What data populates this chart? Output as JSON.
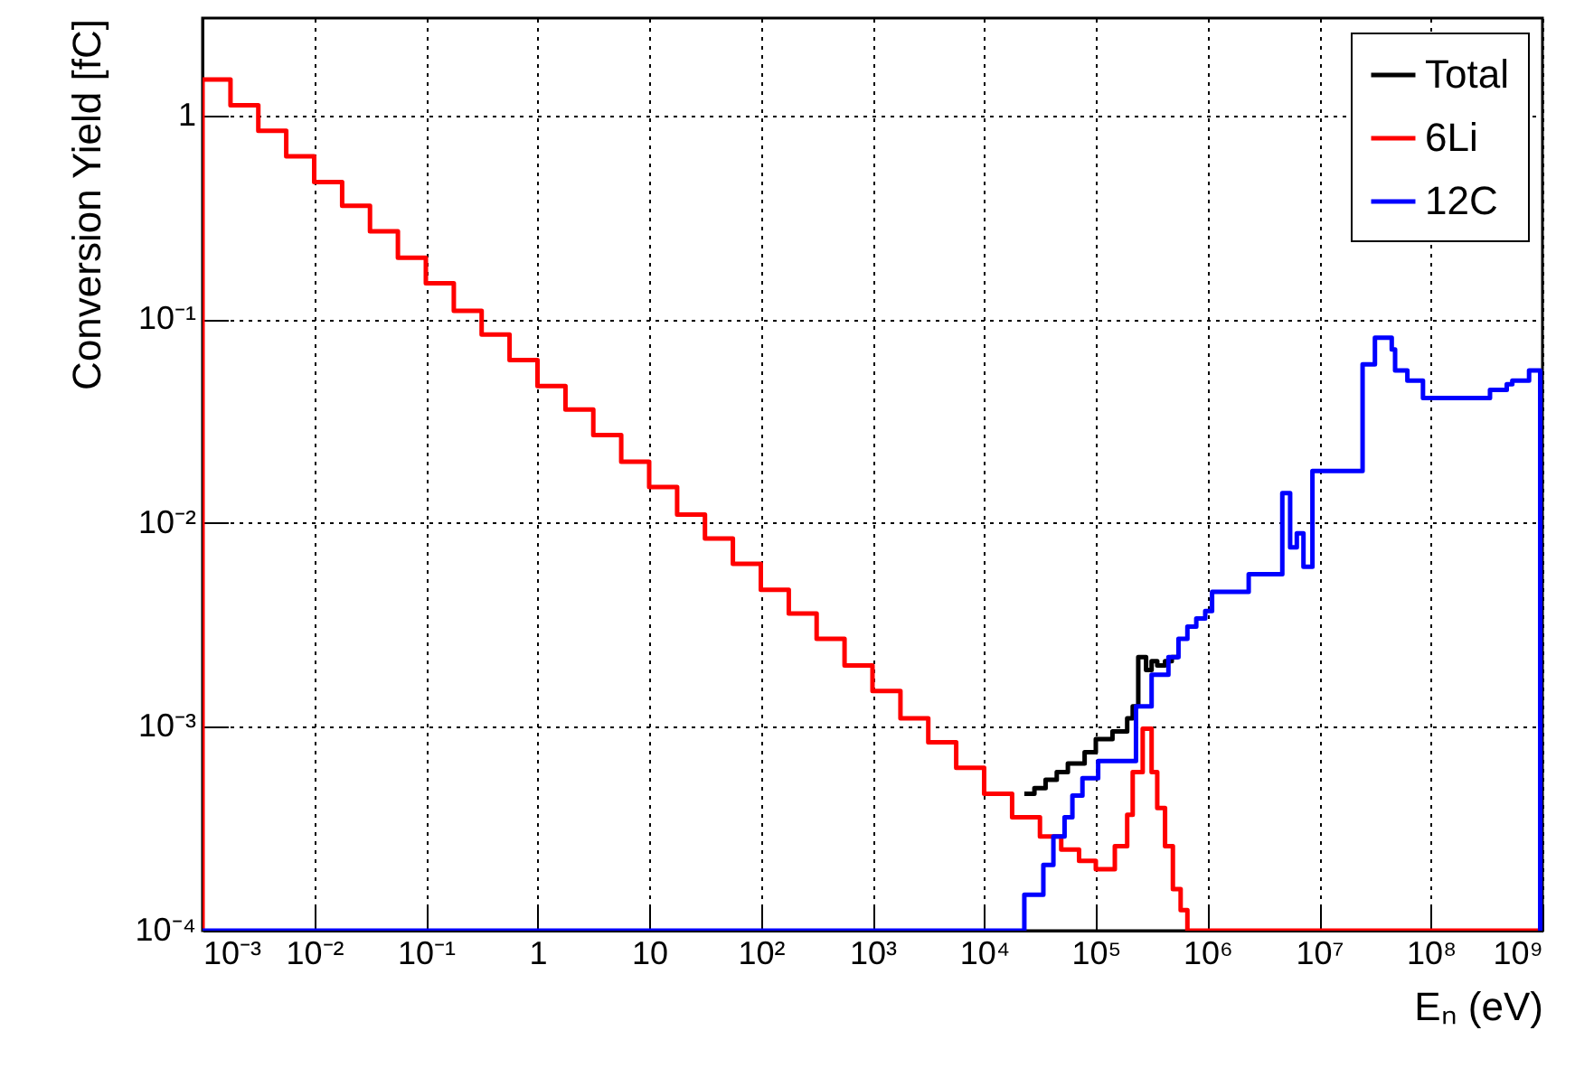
{
  "chart_data": {
    "type": "step",
    "xlabel": "Eₙ (eV)",
    "ylabel": "Conversion Yield [fC]",
    "log": "xy",
    "grid": true,
    "legend": "top right",
    "line_style": "solid",
    "marker": "none",
    "xlim": [
      0.001,
      1000000000
    ],
    "ylim": [
      0.0001,
      3
    ],
    "xticks": [
      {
        "value": 0.001,
        "label": "10⁻³"
      },
      {
        "value": 0.01,
        "label": "10⁻²"
      },
      {
        "value": 0.1,
        "label": "10⁻¹"
      },
      1,
      10,
      {
        "value": 100,
        "label": "10²"
      },
      {
        "value": 1000,
        "label": "10³"
      },
      {
        "value": 10000,
        "label": "10⁴"
      },
      {
        "value": 100000,
        "label": "10⁵"
      },
      {
        "value": 1000000,
        "label": "10⁶"
      },
      {
        "value": 10000000,
        "label": "10⁷"
      },
      {
        "value": 100000000,
        "label": "10⁸"
      },
      {
        "value": 1000000000,
        "label": "10⁹"
      }
    ],
    "yticks": [
      {
        "value": 0.0001,
        "label": "10⁻⁴"
      },
      {
        "value": 0.001,
        "label": "10⁻³"
      },
      {
        "value": 0.01,
        "label": "10⁻²"
      },
      {
        "value": 0.1,
        "label": "10⁻¹"
      },
      1
    ],
    "series": [
      {
        "name": "Total",
        "color": "#000000",
        "x": [
          22900,
          28200,
          35500,
          44700,
          56200,
          79400,
          100000,
          141000,
          191000,
          214000,
          240000,
          282000,
          316000,
          355000,
          417000,
          479000,
          550000
        ],
        "values": [
          0.00047,
          0.0005,
          0.00055,
          0.0006,
          0.00066,
          0.00075,
          0.00087,
          0.00095,
          0.0011,
          0.00126,
          0.0022,
          0.0019,
          0.0021,
          0.002,
          0.0021,
          0.0022,
          0.0022
        ]
      },
      {
        "name": "6Li",
        "color": "#ff0000",
        "x": [
          0.001,
          0.001,
          0.00178,
          0.00316,
          0.00562,
          0.01,
          0.0178,
          0.0316,
          0.0562,
          0.1,
          0.178,
          0.316,
          0.562,
          1,
          1.78,
          3.16,
          5.62,
          10,
          17.8,
          31.6,
          56.2,
          100,
          178,
          316,
          562,
          1000,
          1780,
          3160,
          5620,
          10000,
          17800,
          31600,
          49000,
          70800,
          100000,
          148000,
          191000,
          214000,
          263000,
          316000,
          355000,
          417000,
          490000,
          575000,
          661000,
          1000000000
        ],
        "values": [
          0.0001,
          1.5,
          1.12,
          0.84,
          0.63,
          0.47,
          0.36,
          0.27,
          0.2,
          0.15,
          0.11,
          0.084,
          0.063,
          0.047,
          0.036,
          0.027,
          0.02,
          0.015,
          0.011,
          0.0084,
          0.0063,
          0.0047,
          0.0036,
          0.0027,
          0.002,
          0.0015,
          0.0011,
          0.00084,
          0.00063,
          0.00047,
          0.00036,
          0.00029,
          0.00025,
          0.00022,
          0.0002,
          0.00026,
          0.00037,
          0.0006,
          0.00098,
          0.0006,
          0.0004,
          0.00026,
          0.00016,
          0.000126,
          0.0001,
          0.0001
        ]
      },
      {
        "name": "12C",
        "color": "#0000ff",
        "x": [
          0.001,
          22900,
          33900,
          41700,
          52500,
          61700,
          75900,
          105000,
          229000,
          316000,
          447000,
          550000,
          661000,
          794000,
          955000,
          1100000,
          2340000,
          4680000,
          5500000,
          6310000,
          7240000,
          8710000,
          24500000,
          31600000,
          44700000,
          47900000,
          61700000,
          85100000,
          339000000,
          479000000,
          537000000,
          759000000,
          955000000,
          1000000000
        ],
        "values": [
          0.0001,
          0.00015,
          0.00021,
          0.00029,
          0.00036,
          0.00046,
          0.00056,
          0.00068,
          0.00126,
          0.0018,
          0.0022,
          0.0027,
          0.0031,
          0.0034,
          0.0037,
          0.0046,
          0.0056,
          0.014,
          0.0076,
          0.0089,
          0.0061,
          0.018,
          0.06,
          0.081,
          0.071,
          0.056,
          0.05,
          0.041,
          0.045,
          0.048,
          0.05,
          0.056,
          0.0001,
          0.0001
        ]
      }
    ]
  }
}
